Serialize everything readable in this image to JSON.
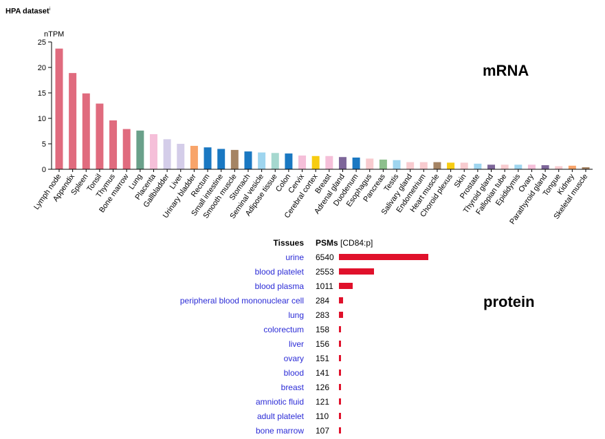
{
  "header": {
    "title": "HPA dataset",
    "info_marker": "i"
  },
  "labels": {
    "mrna": "mRNA",
    "protein": "protein"
  },
  "chart_data": {
    "type": "bar",
    "ylabel": "nTPM",
    "ylim": [
      0,
      25
    ],
    "yticks": [
      0,
      5,
      10,
      15,
      20,
      25
    ],
    "categories": [
      "Lymph node",
      "Appendix",
      "Spleen",
      "Tonsil",
      "Thymus",
      "Bone marrow",
      "Lung",
      "Placenta",
      "Gallbladder",
      "Liver",
      "Urinary bladder",
      "Rectum",
      "Small intestine",
      "Smooth muscle",
      "Stomach",
      "Seminal vesicle",
      "Adipose tissue",
      "Colon",
      "Cervix",
      "Cerebral cortex",
      "Breast",
      "Adrenal gland",
      "Duodenum",
      "Esophagus",
      "Pancreas",
      "Testis",
      "Salivary gland",
      "Endometrium",
      "Heart muscle",
      "Choroid plexus",
      "Skin",
      "Prostate",
      "Thyroid gland",
      "Fallopian tube",
      "Epididymis",
      "Ovary",
      "Parathyroid gland",
      "Tongue",
      "Kidney",
      "Skeletal muscle"
    ],
    "values": [
      23.7,
      18.9,
      14.9,
      12.9,
      9.6,
      7.9,
      7.6,
      6.9,
      5.9,
      5.0,
      4.6,
      4.3,
      4.0,
      3.8,
      3.5,
      3.3,
      3.2,
      3.1,
      2.7,
      2.6,
      2.6,
      2.4,
      2.3,
      2.1,
      1.9,
      1.8,
      1.4,
      1.4,
      1.4,
      1.3,
      1.3,
      1.1,
      0.9,
      0.9,
      0.9,
      0.9,
      0.8,
      0.6,
      0.7,
      0.4
    ],
    "colors": [
      "#e06b7e",
      "#e06b7e",
      "#e06b7e",
      "#e06b7e",
      "#e06b7e",
      "#e06b7e",
      "#6aa08a",
      "#f5bfd9",
      "#d4cde9",
      "#d4cde9",
      "#f8a46a",
      "#1a78c2",
      "#1a78c2",
      "#a58464",
      "#1a78c2",
      "#9ed5ef",
      "#a5d8cf",
      "#1a78c2",
      "#f5bfd9",
      "#f7cc12",
      "#f5bfd9",
      "#7d6699",
      "#1a78c2",
      "#f8cbcf",
      "#8cbf8c",
      "#9ed5ef",
      "#f8cbcf",
      "#f8cbcf",
      "#a58464",
      "#f7cc12",
      "#f8cbcf",
      "#9ed5ef",
      "#7d6699",
      "#f8cbcf",
      "#9ed5ef",
      "#f5bfd9",
      "#7d6699",
      "#f8cbcf",
      "#f8a46a",
      "#a58464"
    ]
  },
  "protein": {
    "header_tissues": "Tissues",
    "header_psms": "PSMs",
    "header_psms_suffix": "[CD84:p]",
    "bar_color": "#e0112b",
    "max_value": 6540,
    "rows": [
      {
        "tissue": "urine",
        "psms": 6540
      },
      {
        "tissue": "blood platelet",
        "psms": 2553
      },
      {
        "tissue": "blood plasma",
        "psms": 1011
      },
      {
        "tissue": "peripheral blood mononuclear cell",
        "psms": 284
      },
      {
        "tissue": "lung",
        "psms": 283
      },
      {
        "tissue": "colorectum",
        "psms": 158
      },
      {
        "tissue": "liver",
        "psms": 156
      },
      {
        "tissue": "ovary",
        "psms": 151
      },
      {
        "tissue": "blood",
        "psms": 141
      },
      {
        "tissue": "breast",
        "psms": 126
      },
      {
        "tissue": "amniotic fluid",
        "psms": 121
      },
      {
        "tissue": "adult platelet",
        "psms": 110
      },
      {
        "tissue": "bone marrow",
        "psms": 107
      }
    ]
  }
}
